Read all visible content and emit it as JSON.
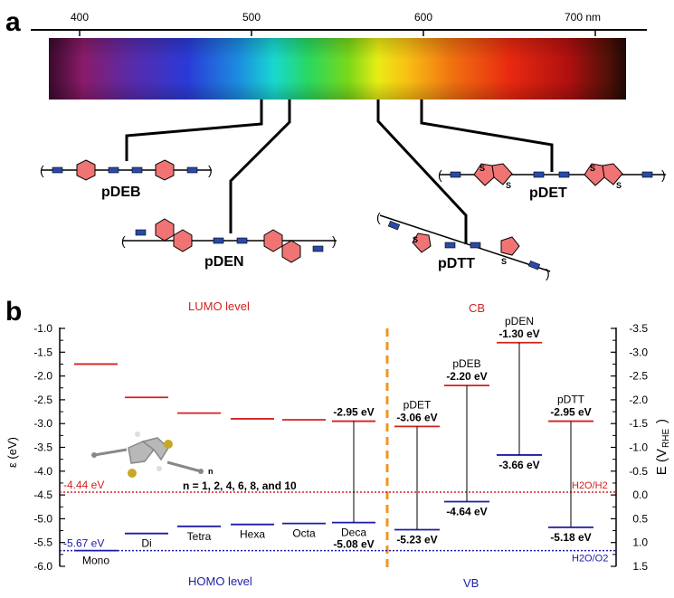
{
  "panel_a": {
    "label": "a",
    "spectrum_ticks": [
      {
        "value": 400,
        "text": "400"
      },
      {
        "value": 500,
        "text": "500"
      },
      {
        "value": 600,
        "text": "600"
      },
      {
        "value": 700,
        "text": "700 nm"
      }
    ],
    "molecules": [
      {
        "name": "pDEB",
        "key": "pDEB"
      },
      {
        "name": "pDEN",
        "key": "pDEN"
      },
      {
        "name": "pDTT",
        "key": "pDTT"
      },
      {
        "name": "pDET",
        "key": "pDET"
      }
    ]
  },
  "panel_b": {
    "label": "b",
    "header_lumo": "LUMO level",
    "header_homo": "HOMO level",
    "header_cb": "CB",
    "header_vb": "VB",
    "ref_h2": "H2O/H2",
    "ref_o2": "H2O/O2",
    "ref_h2_value": "-4.44 eV",
    "ref_o2_value": "-5.67 eV",
    "n_note": "n = 1, 2, 4, 6, 8, and 10",
    "colors": {
      "lumo": "#d42020",
      "homo": "#1c1ca8",
      "divider": "#f0961e"
    }
  },
  "chart_data": {
    "type": "energy-level diagram",
    "ylabel_left": "ε (eV)",
    "ylabel_right_main": "E (V",
    "ylabel_right_sub": "RHE",
    "ylabel_right_end": ")",
    "ylim_left": [
      -6.0,
      -1.0
    ],
    "yticks_left": [
      "-1.0",
      "-1.5",
      "-2.0",
      "-2.5",
      "-3.0",
      "-3.5",
      "-4.0",
      "-4.5",
      "-5.0",
      "-5.5",
      "-6.0"
    ],
    "ylim_right": [
      -3.5,
      1.5
    ],
    "yticks_right": [
      "-3.5",
      "-3.0",
      "-2.5",
      "-2.0",
      "-1.5",
      "-1.0",
      "-0.5",
      "0.0",
      "0.5",
      "1.0",
      "1.5"
    ],
    "oligomers": [
      {
        "name": "Mono",
        "lumo": -1.75,
        "homo": -5.67
      },
      {
        "name": "Di",
        "lumo": -2.45,
        "homo": -5.31
      },
      {
        "name": "Tetra",
        "lumo": -2.78,
        "homo": -5.16
      },
      {
        "name": "Hexa",
        "lumo": -2.9,
        "homo": -5.12
      },
      {
        "name": "Octa",
        "lumo": -2.92,
        "homo": -5.1
      },
      {
        "name": "Deca",
        "lumo": -2.95,
        "homo": -5.08,
        "lumo_label": "-2.95 eV",
        "homo_label": "-5.08 eV"
      }
    ],
    "polymers": [
      {
        "name": "pDET",
        "cb": -3.06,
        "vb": -5.23,
        "cb_label": "-3.06 eV",
        "vb_label": "-5.23 eV"
      },
      {
        "name": "pDEB",
        "cb": -2.2,
        "vb": -4.64,
        "cb_label": "-2.20 eV",
        "vb_label": "-4.64 eV"
      },
      {
        "name": "pDEN",
        "cb": -1.3,
        "vb": -3.66,
        "cb_label": "-1.30 eV",
        "vb_label": "-3.66 eV"
      },
      {
        "name": "pDTT",
        "cb": -2.95,
        "vb": -5.18,
        "cb_label": "-2.95 eV",
        "vb_label": "-5.18 eV"
      }
    ],
    "reference_levels": [
      -4.44,
      -5.67
    ]
  }
}
